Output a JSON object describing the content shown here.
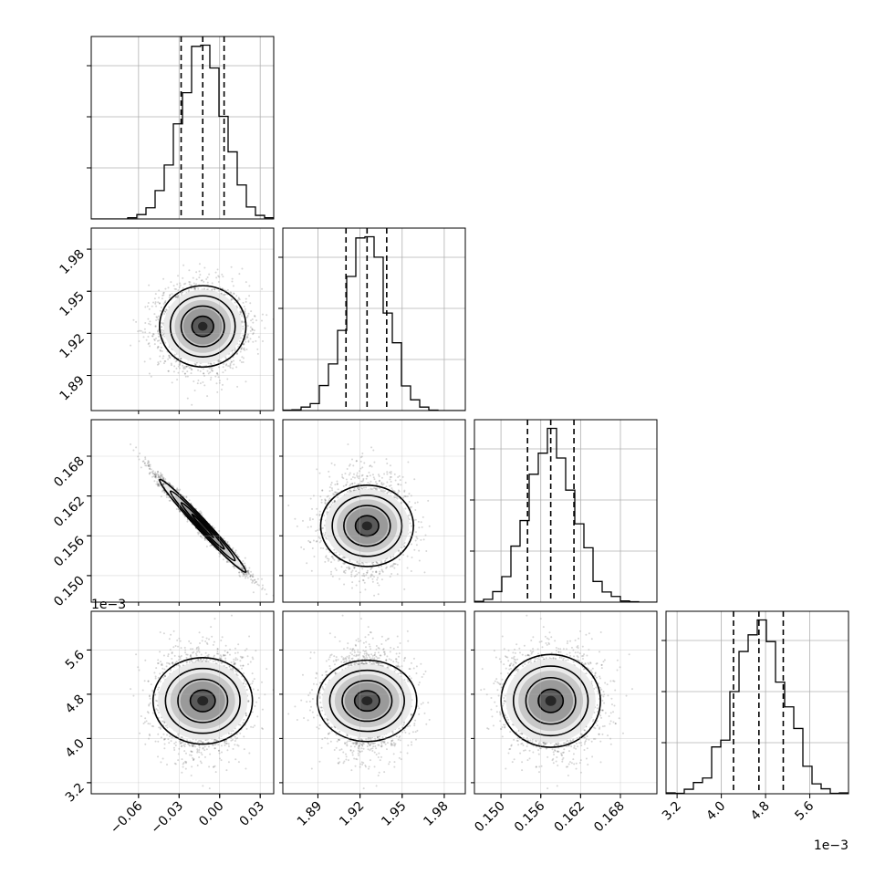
{
  "chart_data": {
    "type": "corner",
    "title": "",
    "parameters": [
      {
        "axis_range": [
          -0.095,
          0.04
        ],
        "ticks": [
          -0.06,
          -0.03,
          0.0,
          0.03
        ],
        "tick_labels": [
          "−0.06",
          "−0.03",
          "0.00",
          "0.03"
        ],
        "median": -0.0125,
        "quantiles": [
          -0.0285,
          0.0033
        ],
        "sigma": 0.016,
        "offset_text": ""
      },
      {
        "axis_range": [
          1.865,
          1.995
        ],
        "ticks": [
          1.89,
          1.92,
          1.95,
          1.98
        ],
        "tick_labels": [
          "1.89",
          "1.92",
          "1.95",
          "1.98"
        ],
        "median": 1.925,
        "quantiles": [
          1.91,
          1.939
        ],
        "sigma": 0.0145,
        "offset_text": ""
      },
      {
        "axis_range": [
          0.146,
          0.1735
        ],
        "ticks": [
          0.15,
          0.156,
          0.162,
          0.168
        ],
        "tick_labels": [
          "0.150",
          "0.156",
          "0.162",
          "0.168"
        ],
        "median": 0.1575,
        "quantiles": [
          0.154,
          0.161
        ],
        "sigma": 0.0035,
        "offset_text": ""
      },
      {
        "axis_range": [
          3.0,
          6.3
        ],
        "ticks": [
          3.2,
          4.0,
          4.8,
          5.6
        ],
        "tick_labels": [
          "3.2",
          "4.0",
          "4.8",
          "5.6"
        ],
        "median": 4.68,
        "quantiles": [
          4.22,
          5.12
        ],
        "sigma": 0.45,
        "offset_text": "1e−3"
      }
    ],
    "histogram_bins": 20,
    "contour_levels": [
      0.118,
      0.393,
      0.675,
      0.864
    ],
    "correlations": {
      "1-0": 0.0,
      "2-0": -0.985,
      "2-1": 0.0,
      "3-0": 0.0,
      "3-1": 0.0,
      "3-2": 0.0
    },
    "grid": true,
    "legend": "none"
  }
}
